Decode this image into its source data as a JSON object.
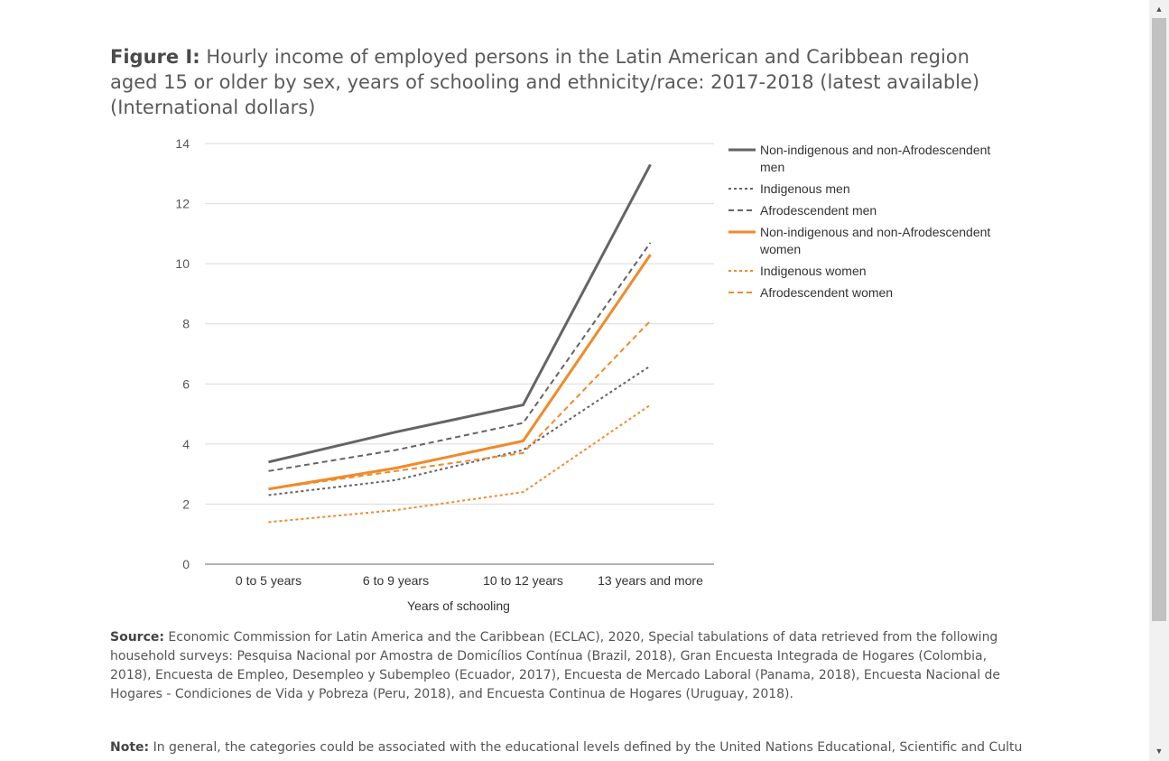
{
  "figure": {
    "title_lead": "Figure I:",
    "title_text": "Hourly income of employed persons in the Latin American and Caribbean region aged 15 or older by sex, years of schooling and ethnicity/race: 2017-2018 (latest available) (International dollars)"
  },
  "source": {
    "label": "Source:",
    "text": "Economic Commission for Latin America and the Caribbean (ECLAC), 2020, Special tabulations of data retrieved from the following household surveys: Pesquisa Nacional por Amostra de Domicílios Contínua (Brazil, 2018), Gran Encuesta Integrada de Hogares (Colombia, 2018), Encuesta de Empleo, Desempleo y Subempleo (Ecuador, 2017), Encuesta de Mercado Laboral (Panama, 2018), Encuesta Nacional de Hogares - Condiciones de Vida y Pobreza (Peru, 2018), and Encuesta Continua de Hogares (Uruguay, 2018)."
  },
  "note": {
    "label": "Note:",
    "text": "In general, the categories could be associated with the educational levels defined by the United Nations Educational, Scientific and Cultural"
  },
  "chart_data": {
    "type": "line",
    "title": "",
    "xlabel": "Years of schooling",
    "ylabel": "",
    "ylim": [
      0,
      14
    ],
    "yticks": [
      "0",
      "2",
      "4",
      "6",
      "8",
      "10",
      "12",
      "14"
    ],
    "grid": true,
    "legend_position": "right",
    "categories": [
      "0 to 5 years",
      "6 to 9 years",
      "10 to 12 years",
      "13 years and more"
    ],
    "series": [
      {
        "name": "Non-indigenous and non-Afrodescendent men",
        "values": [
          3.4,
          4.4,
          5.3,
          13.3
        ],
        "color": "#666366",
        "style": "solid"
      },
      {
        "name": "Indigenous men",
        "values": [
          2.3,
          2.8,
          3.8,
          6.6
        ],
        "color": "#666366",
        "style": "dotted"
      },
      {
        "name": "Afrodescendent men",
        "values": [
          3.1,
          3.8,
          4.7,
          10.7
        ],
        "color": "#666366",
        "style": "dashed"
      },
      {
        "name": "Non-indigenous and non-Afrodescendent women",
        "values": [
          2.5,
          3.2,
          4.1,
          10.3
        ],
        "color": "#f08a2b",
        "style": "solid"
      },
      {
        "name": "Indigenous women",
        "values": [
          1.4,
          1.8,
          2.4,
          5.3
        ],
        "color": "#f08a2b",
        "style": "dotted"
      },
      {
        "name": "Afrodescendent women",
        "values": [
          2.5,
          3.1,
          3.7,
          8.1
        ],
        "color": "#f08a2b",
        "style": "dashed"
      }
    ]
  },
  "scrollbar": {
    "up_glyph": "▲",
    "down_glyph": "▼"
  }
}
